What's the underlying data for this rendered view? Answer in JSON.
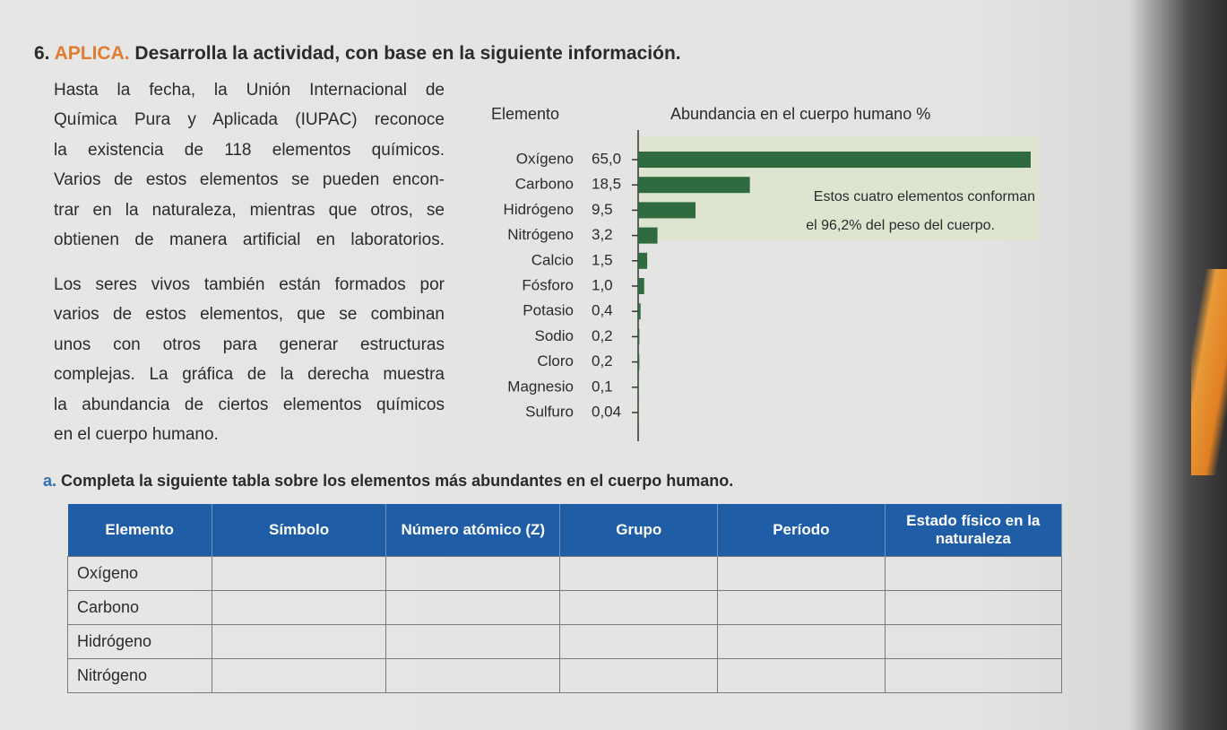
{
  "heading": {
    "number": "6.",
    "label": "APLICA.",
    "text": "Desarrolla la actividad, con base en la siguiente información."
  },
  "paragraphs": [
    [
      "Hasta la fecha, la Unión Internacional de",
      "Química Pura y Aplicada (IUPAC) reconoce",
      "la existencia de 118 elementos químicos.",
      "Varios de estos elementos se pueden encon-",
      "trar en la naturaleza, mientras que otros, se",
      "obtienen de manera artificial en laboratorios."
    ],
    [
      "Los seres vivos también están formados por",
      "varios de estos elementos, que se combinan",
      "unos con otros para generar estructuras",
      "complejas. La gráfica de la derecha muestra",
      "la abundancia de ciertos elementos químicos",
      "en el cuerpo humano."
    ]
  ],
  "chart_data": {
    "type": "bar",
    "orientation": "horizontal",
    "category_header": "Elemento",
    "value_header": "Abundancia en el cuerpo humano %",
    "categories": [
      "Oxígeno",
      "Carbono",
      "Hidrógeno",
      "Nitrógeno",
      "Calcio",
      "Fósforo",
      "Potasio",
      "Sodio",
      "Cloro",
      "Magnesio",
      "Sulfuro"
    ],
    "values": [
      65.0,
      18.5,
      9.5,
      3.2,
      1.5,
      1.0,
      0.4,
      0.2,
      0.2,
      0.1,
      0.04
    ],
    "value_labels": [
      "65,0",
      "18,5",
      "9,5",
      "3,2",
      "1,5",
      "1,0",
      "0,4",
      "0,2",
      "0,2",
      "0,1",
      "0,04"
    ],
    "color": "#2f6b3e",
    "xlim": [
      0,
      65
    ],
    "annotation": [
      "Estos cuatro elementos conforman",
      "el 96,2% del peso del cuerpo."
    ]
  },
  "task": {
    "label": "a.",
    "text": "Completa la siguiente tabla sobre los elementos más abundantes en el cuerpo humano."
  },
  "table": {
    "headers": [
      "Elemento",
      "Símbolo",
      "Número atómico (Z)",
      "Grupo",
      "Período",
      "Estado físico en la naturaleza"
    ],
    "rows": [
      "Oxígeno",
      "Carbono",
      "Hidrógeno",
      "Nitrógeno"
    ]
  }
}
